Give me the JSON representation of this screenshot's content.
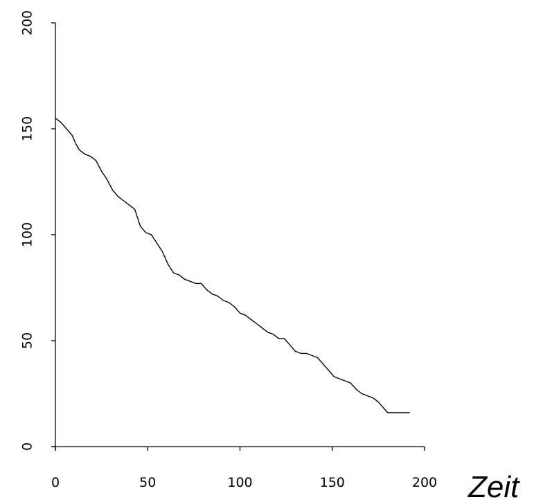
{
  "chart_data": {
    "type": "line",
    "title": "",
    "xlabel": "Zeit",
    "ylabel": "",
    "xlim": [
      0,
      200
    ],
    "ylim": [
      0,
      200
    ],
    "grid": false,
    "x_ticks": [
      0,
      50,
      100,
      150,
      200
    ],
    "y_ticks": [
      0,
      50,
      100,
      150,
      200
    ],
    "x_tick_labels": [
      "0",
      "50",
      "100",
      "150",
      "200"
    ],
    "y_tick_labels": [
      "0",
      "50",
      "100",
      "150",
      "200"
    ],
    "series": [
      {
        "color": "#000000",
        "x": [
          0,
          3,
          6,
          9,
          11,
          13,
          16,
          19,
          22,
          25,
          28,
          31,
          34,
          37,
          40,
          43,
          46,
          49,
          52,
          55,
          58,
          61,
          64,
          67,
          70,
          73,
          76,
          79,
          82,
          85,
          88,
          91,
          94,
          97,
          100,
          103,
          106,
          109,
          112,
          115,
          118,
          121,
          124,
          127,
          130,
          133,
          136,
          139,
          142,
          145,
          148,
          151,
          154,
          157,
          160,
          163,
          166,
          169,
          172,
          175,
          178,
          180,
          183,
          186,
          189,
          192
        ],
        "y": [
          155,
          153,
          150,
          147,
          143,
          140,
          138,
          137,
          135,
          130,
          126,
          121,
          118,
          116,
          114,
          112,
          104,
          101,
          100,
          96,
          92,
          86,
          82,
          81,
          79,
          78,
          77,
          77,
          74,
          72,
          71,
          69,
          68,
          66,
          63,
          62,
          60,
          58,
          56,
          54,
          53,
          51,
          51,
          48,
          45,
          44,
          44,
          43,
          42,
          39,
          36,
          33,
          32,
          31,
          30,
          27,
          25,
          24,
          23,
          21,
          18,
          16,
          16,
          16,
          16,
          16
        ]
      }
    ]
  }
}
